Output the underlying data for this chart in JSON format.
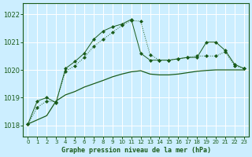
{
  "background_color": "#cceeff",
  "grid_color": "#ffffff",
  "line_color": "#1a5c1a",
  "title": "Graphe pression niveau de la mer (hPa)",
  "xlim": [
    -0.5,
    23.5
  ],
  "ylim": [
    1017.6,
    1022.4
  ],
  "yticks": [
    1018,
    1019,
    1020,
    1021,
    1022
  ],
  "xticks": [
    0,
    1,
    2,
    3,
    4,
    5,
    6,
    7,
    8,
    9,
    10,
    11,
    12,
    13,
    14,
    15,
    16,
    17,
    18,
    19,
    20,
    21,
    22,
    23
  ],
  "series_dotted": {
    "x": [
      0,
      1,
      2,
      3,
      4,
      5,
      6,
      7,
      8,
      9,
      10,
      11,
      12,
      13,
      14,
      15,
      16,
      17,
      18,
      19,
      20,
      21,
      22,
      23
    ],
    "y": [
      1018.05,
      1018.65,
      1018.88,
      1018.85,
      1019.95,
      1020.15,
      1020.45,
      1020.85,
      1021.1,
      1021.35,
      1021.6,
      1021.78,
      1021.75,
      1020.55,
      1020.35,
      1020.35,
      1020.4,
      1020.45,
      1020.5,
      1020.5,
      1020.5,
      1020.65,
      1020.15,
      1020.05
    ]
  },
  "series_solid_markers": {
    "x": [
      0,
      1,
      2,
      3,
      4,
      5,
      6,
      7,
      8,
      9,
      10,
      11,
      12,
      13,
      14,
      15,
      16,
      17,
      18,
      19,
      20,
      21,
      22,
      23
    ],
    "y": [
      1018.05,
      1018.88,
      1019.0,
      1018.82,
      1020.05,
      1020.3,
      1020.6,
      1021.1,
      1021.4,
      1021.55,
      1021.65,
      1021.82,
      1020.6,
      1020.35,
      1020.35,
      1020.35,
      1020.4,
      1020.45,
      1020.45,
      1021.0,
      1021.0,
      1020.7,
      1020.2,
      1020.05
    ]
  },
  "series_smooth": {
    "x": [
      0,
      1,
      2,
      3,
      4,
      5,
      6,
      7,
      8,
      9,
      10,
      11,
      12,
      13,
      14,
      15,
      16,
      17,
      18,
      19,
      20,
      21,
      22,
      23
    ],
    "y": [
      1018.05,
      1018.2,
      1018.35,
      1018.88,
      1019.1,
      1019.22,
      1019.38,
      1019.5,
      1019.62,
      1019.75,
      1019.85,
      1019.93,
      1019.97,
      1019.85,
      1019.82,
      1019.82,
      1019.85,
      1019.9,
      1019.95,
      1019.98,
      1020.0,
      1020.0,
      1020.0,
      1020.0
    ]
  }
}
